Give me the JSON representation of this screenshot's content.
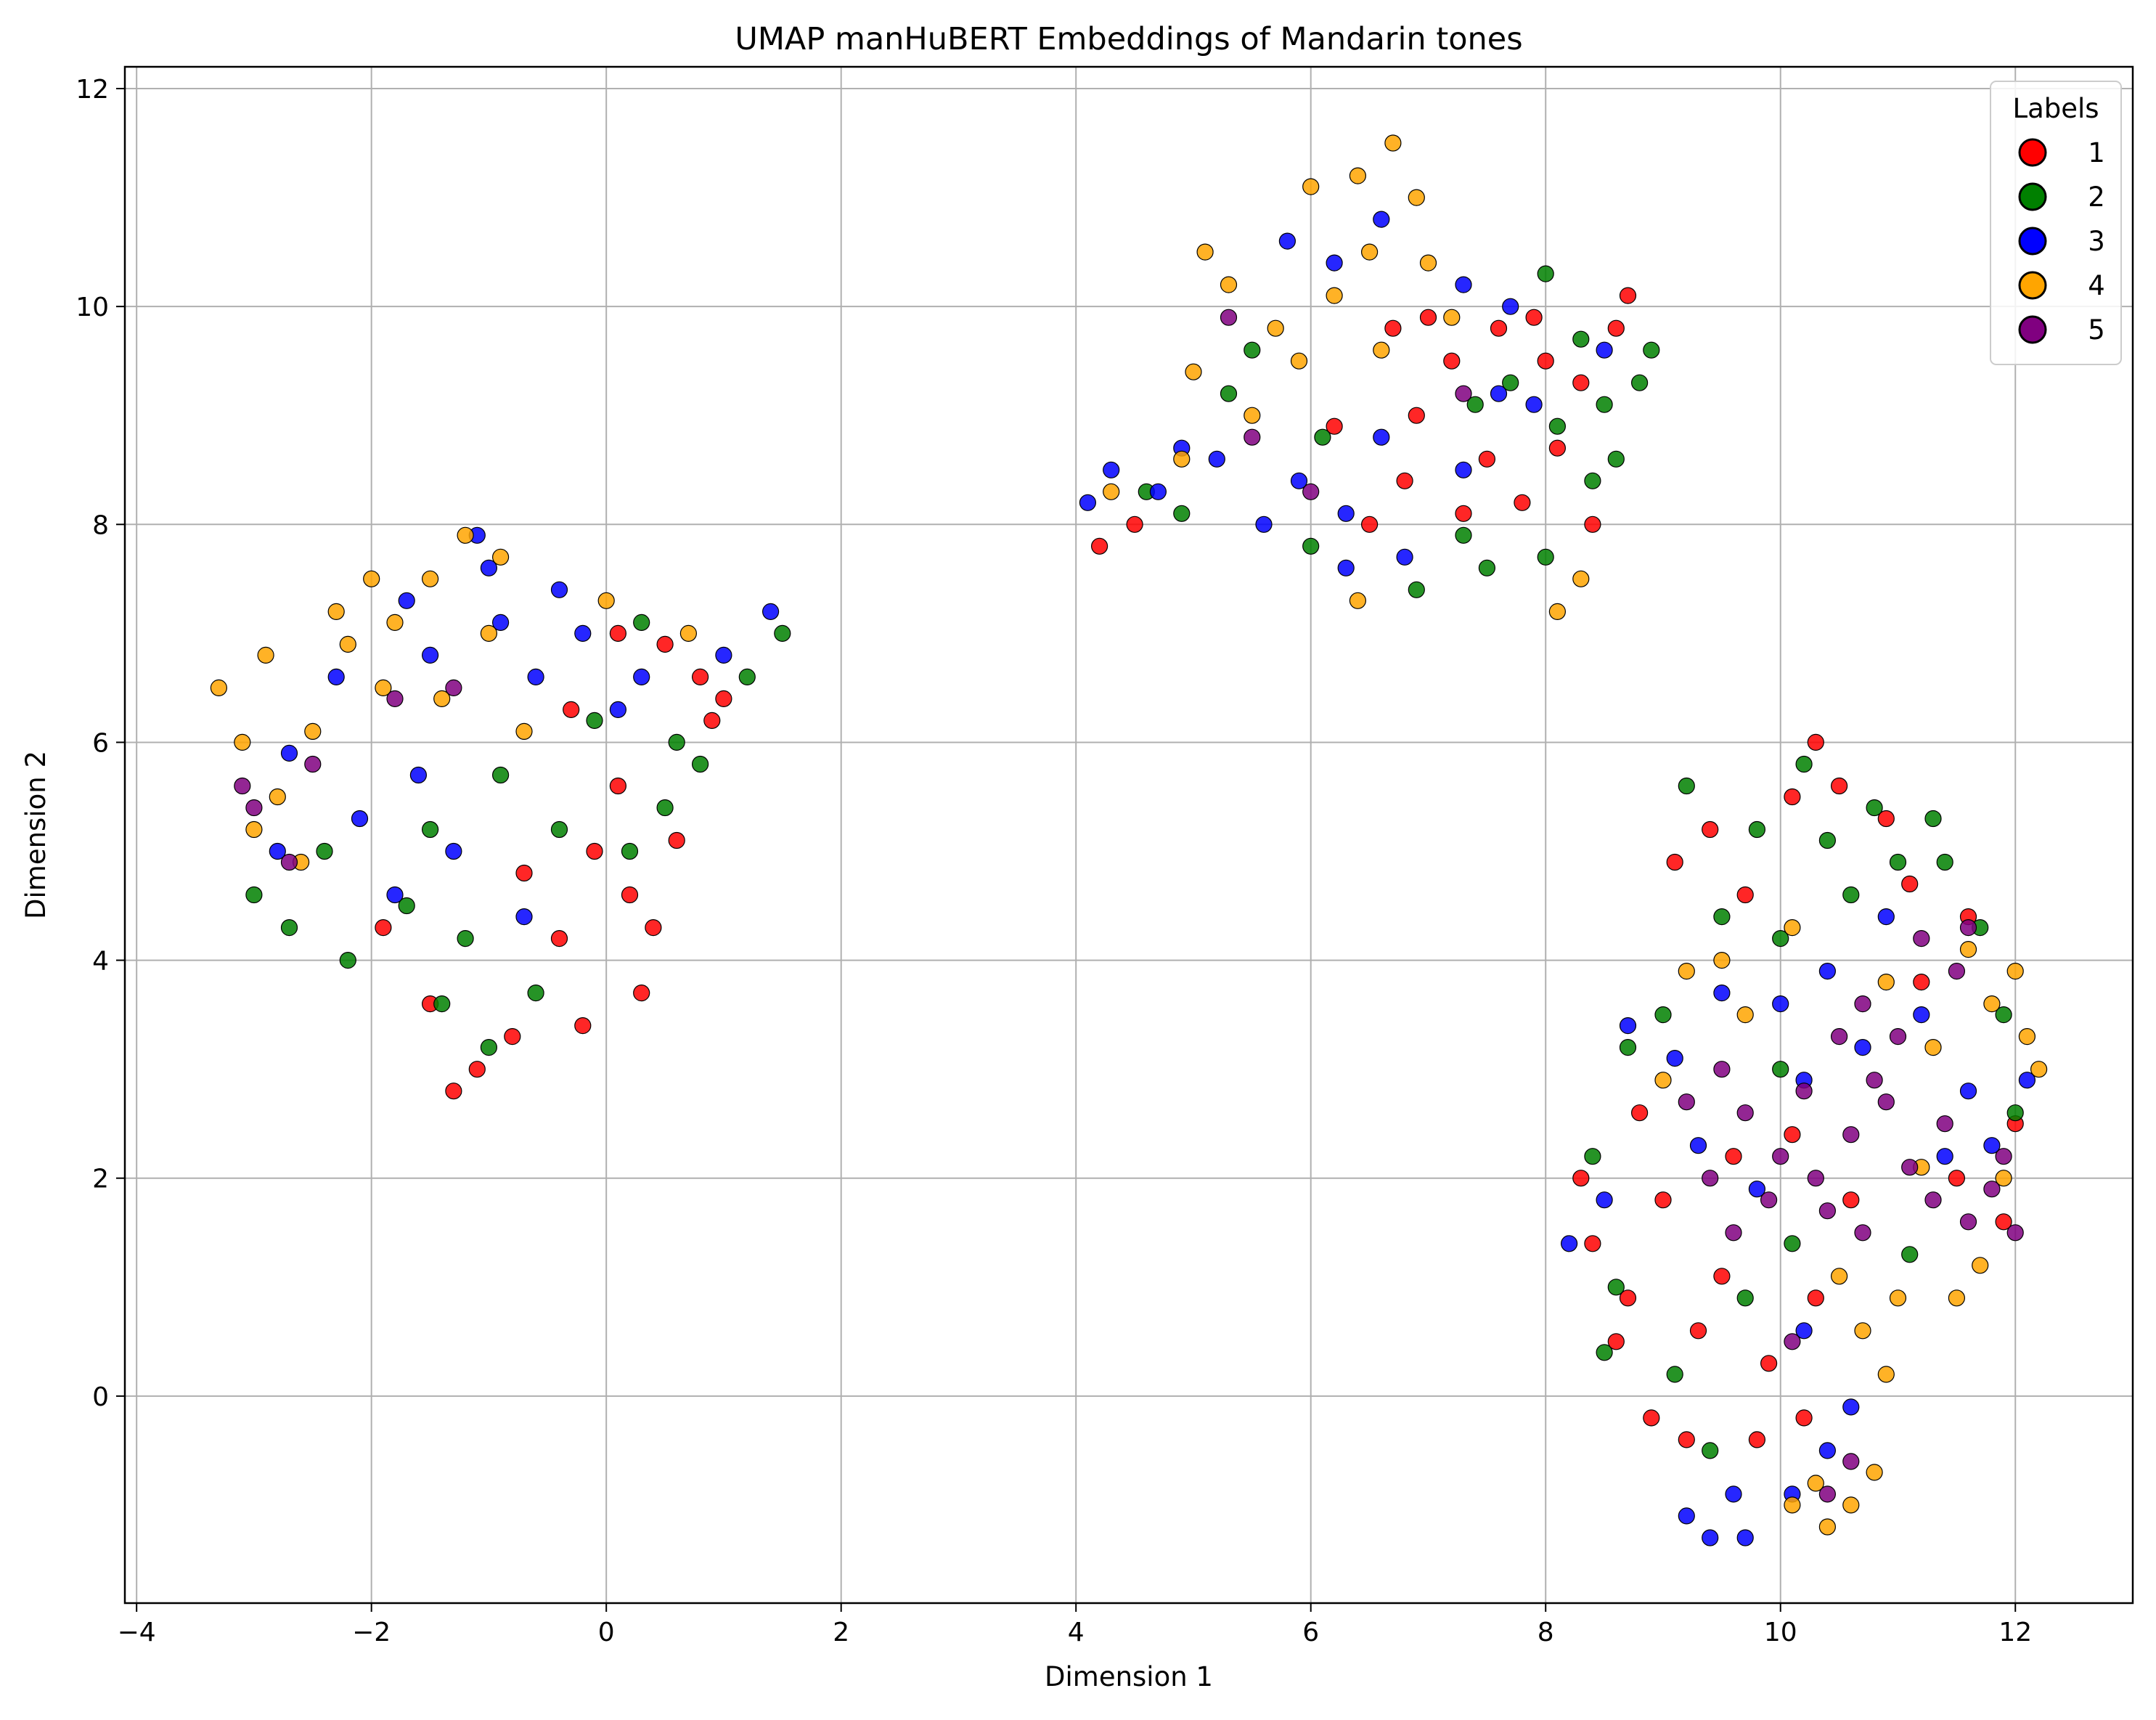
{
  "chart_data": {
    "type": "scatter",
    "title": "UMAP manHuBERT Embeddings of Mandarin tones",
    "xlabel": "Dimension 1",
    "ylabel": "Dimension 2",
    "xlim": [
      -4.1,
      13.0
    ],
    "ylim": [
      -1.9,
      12.2
    ],
    "xticks": [
      -4,
      -2,
      0,
      2,
      4,
      6,
      8,
      10,
      12
    ],
    "xtick_labels": [
      "−4",
      "−2",
      "0",
      "2",
      "4",
      "6",
      "8",
      "10",
      "12"
    ],
    "yticks": [
      0,
      2,
      4,
      6,
      8,
      10,
      12
    ],
    "ytick_labels": [
      "0",
      "2",
      "4",
      "6",
      "8",
      "10",
      "12"
    ],
    "grid": true,
    "legend": {
      "title": "Labels",
      "placement": "top-right",
      "entries": [
        "1",
        "2",
        "3",
        "4",
        "5"
      ]
    },
    "series": [
      {
        "name": "1",
        "color": "#ff0000",
        "points": [
          [
            0.1,
            5.6
          ],
          [
            0.6,
            5.1
          ],
          [
            0.9,
            6.2
          ],
          [
            0.2,
            4.6
          ],
          [
            -0.4,
            4.2
          ],
          [
            0.3,
            3.7
          ],
          [
            -0.2,
            3.4
          ],
          [
            -1.1,
            3.0
          ],
          [
            -1.3,
            2.8
          ],
          [
            -0.8,
            3.3
          ],
          [
            -1.5,
            3.6
          ],
          [
            -1.9,
            4.3
          ],
          [
            0.8,
            6.6
          ],
          [
            0.5,
            6.9
          ],
          [
            1.0,
            6.4
          ],
          [
            -0.1,
            5.0
          ],
          [
            0.4,
            4.3
          ],
          [
            -0.7,
            4.8
          ],
          [
            -0.3,
            6.3
          ],
          [
            0.1,
            7.0
          ],
          [
            7.6,
            9.8
          ],
          [
            8.1,
            8.7
          ],
          [
            7.9,
            9.9
          ],
          [
            8.4,
            8.0
          ],
          [
            7.5,
            8.6
          ],
          [
            8.7,
            10.1
          ],
          [
            8.3,
            9.3
          ],
          [
            7.8,
            8.2
          ],
          [
            6.8,
            8.4
          ],
          [
            6.9,
            9.0
          ],
          [
            6.2,
            8.9
          ],
          [
            6.5,
            8.0
          ],
          [
            7.2,
            9.5
          ],
          [
            4.5,
            8.0
          ],
          [
            4.2,
            7.8
          ],
          [
            8.0,
            9.5
          ],
          [
            8.6,
            9.8
          ],
          [
            7.3,
            8.1
          ],
          [
            6.7,
            9.8
          ],
          [
            7.0,
            9.9
          ],
          [
            8.6,
            0.5
          ],
          [
            8.9,
            -0.2
          ],
          [
            9.2,
            -0.4
          ],
          [
            9.5,
            1.1
          ],
          [
            8.4,
            1.4
          ],
          [
            8.7,
            0.9
          ],
          [
            9.9,
            0.3
          ],
          [
            9.3,
            0.6
          ],
          [
            8.8,
            2.6
          ],
          [
            9.6,
            2.2
          ],
          [
            10.1,
            5.5
          ],
          [
            10.5,
            5.6
          ],
          [
            10.9,
            5.3
          ],
          [
            9.4,
            5.2
          ],
          [
            9.1,
            4.9
          ],
          [
            9.7,
            4.6
          ],
          [
            10.3,
            6.0
          ],
          [
            11.1,
            4.7
          ],
          [
            11.6,
            4.4
          ],
          [
            11.2,
            3.8
          ],
          [
            10.6,
            1.8
          ],
          [
            10.1,
            2.4
          ],
          [
            11.9,
            1.6
          ],
          [
            11.5,
            2.0
          ],
          [
            12.0,
            2.5
          ],
          [
            10.3,
            0.9
          ],
          [
            9.0,
            1.8
          ],
          [
            8.3,
            2.0
          ],
          [
            9.8,
            -0.4
          ],
          [
            10.2,
            -0.2
          ]
        ]
      },
      {
        "name": "2",
        "color": "#008000",
        "points": [
          [
            -0.6,
            3.7
          ],
          [
            -1.0,
            3.2
          ],
          [
            -1.7,
            4.5
          ],
          [
            -1.2,
            4.2
          ],
          [
            -0.4,
            5.2
          ],
          [
            0.2,
            5.0
          ],
          [
            0.6,
            6.0
          ],
          [
            1.2,
            6.6
          ],
          [
            1.5,
            7.0
          ],
          [
            0.8,
            5.8
          ],
          [
            -2.2,
            4.0
          ],
          [
            -2.7,
            4.3
          ],
          [
            -3.0,
            4.6
          ],
          [
            -1.5,
            5.2
          ],
          [
            -0.9,
            5.7
          ],
          [
            0.3,
            7.1
          ],
          [
            -0.1,
            6.2
          ],
          [
            -1.4,
            3.6
          ],
          [
            0.5,
            5.4
          ],
          [
            -2.4,
            5.0
          ],
          [
            8.1,
            8.9
          ],
          [
            8.9,
            9.6
          ],
          [
            8.5,
            9.1
          ],
          [
            8.4,
            8.4
          ],
          [
            8.0,
            7.7
          ],
          [
            7.5,
            7.6
          ],
          [
            8.6,
            8.6
          ],
          [
            7.7,
            9.3
          ],
          [
            8.3,
            9.7
          ],
          [
            6.1,
            8.8
          ],
          [
            6.0,
            7.8
          ],
          [
            5.3,
            9.2
          ],
          [
            6.9,
            7.4
          ],
          [
            7.3,
            7.9
          ],
          [
            4.6,
            8.3
          ],
          [
            4.9,
            8.1
          ],
          [
            5.5,
            9.6
          ],
          [
            8.0,
            10.3
          ],
          [
            8.8,
            9.3
          ],
          [
            7.4,
            9.1
          ],
          [
            10.2,
            5.8
          ],
          [
            10.8,
            5.4
          ],
          [
            11.0,
            4.9
          ],
          [
            10.4,
            5.1
          ],
          [
            9.8,
            5.2
          ],
          [
            9.2,
            5.6
          ],
          [
            9.5,
            4.4
          ],
          [
            10.0,
            4.2
          ],
          [
            11.4,
            4.9
          ],
          [
            11.7,
            4.3
          ],
          [
            11.9,
            3.5
          ],
          [
            8.4,
            2.2
          ],
          [
            8.6,
            1.0
          ],
          [
            8.5,
            0.4
          ],
          [
            9.1,
            0.2
          ],
          [
            9.7,
            0.9
          ],
          [
            10.1,
            1.4
          ],
          [
            9.4,
            -0.5
          ],
          [
            11.3,
            5.3
          ],
          [
            10.6,
            4.6
          ],
          [
            10.0,
            3.0
          ],
          [
            9.0,
            3.5
          ],
          [
            8.7,
            3.2
          ],
          [
            11.1,
            1.3
          ],
          [
            12.0,
            2.6
          ]
        ]
      },
      {
        "name": "3",
        "color": "#0000ff",
        "points": [
          [
            -1.0,
            7.6
          ],
          [
            -0.4,
            7.4
          ],
          [
            -1.5,
            6.8
          ],
          [
            -0.9,
            7.1
          ],
          [
            -2.3,
            6.6
          ],
          [
            -2.7,
            5.9
          ],
          [
            -2.8,
            5.0
          ],
          [
            -1.6,
            5.7
          ],
          [
            -0.6,
            6.6
          ],
          [
            0.1,
            6.3
          ],
          [
            1.0,
            6.8
          ],
          [
            1.4,
            7.2
          ],
          [
            -0.2,
            7.0
          ],
          [
            -1.3,
            5.0
          ],
          [
            -1.8,
            4.6
          ],
          [
            -2.1,
            5.3
          ],
          [
            0.3,
            6.6
          ],
          [
            -0.7,
            4.4
          ],
          [
            -1.1,
            7.9
          ],
          [
            -1.7,
            7.3
          ],
          [
            4.3,
            8.5
          ],
          [
            4.7,
            8.3
          ],
          [
            4.9,
            8.7
          ],
          [
            4.1,
            8.2
          ],
          [
            5.2,
            8.6
          ],
          [
            5.6,
            8.0
          ],
          [
            5.9,
            8.4
          ],
          [
            6.3,
            8.1
          ],
          [
            6.6,
            8.8
          ],
          [
            6.3,
            7.6
          ],
          [
            6.8,
            7.7
          ],
          [
            7.3,
            8.5
          ],
          [
            7.6,
            9.2
          ],
          [
            7.9,
            9.1
          ],
          [
            5.8,
            10.6
          ],
          [
            6.2,
            10.4
          ],
          [
            6.6,
            10.8
          ],
          [
            7.3,
            10.2
          ],
          [
            7.7,
            10.0
          ],
          [
            8.5,
            9.6
          ],
          [
            9.4,
            -1.3
          ],
          [
            9.7,
            -1.3
          ],
          [
            9.2,
            -1.1
          ],
          [
            10.1,
            -0.9
          ],
          [
            10.4,
            -0.5
          ],
          [
            10.6,
            -0.1
          ],
          [
            9.6,
            -0.9
          ],
          [
            10.7,
            3.2
          ],
          [
            10.2,
            2.9
          ],
          [
            9.5,
            3.7
          ],
          [
            10.0,
            3.6
          ],
          [
            11.6,
            2.8
          ],
          [
            11.8,
            2.3
          ],
          [
            11.4,
            2.2
          ],
          [
            8.2,
            1.4
          ],
          [
            8.5,
            1.8
          ],
          [
            10.2,
            0.6
          ],
          [
            9.3,
            2.3
          ],
          [
            10.9,
            4.4
          ],
          [
            10.4,
            3.9
          ],
          [
            9.8,
            1.9
          ],
          [
            9.1,
            3.1
          ],
          [
            8.7,
            3.4
          ],
          [
            11.2,
            3.5
          ],
          [
            12.1,
            2.9
          ]
        ]
      },
      {
        "name": "4",
        "color": "#ffa500",
        "points": [
          [
            -3.3,
            6.5
          ],
          [
            -3.1,
            6.0
          ],
          [
            -2.9,
            6.8
          ],
          [
            -2.5,
            6.1
          ],
          [
            -2.0,
            7.5
          ],
          [
            -1.8,
            7.1
          ],
          [
            -1.2,
            7.9
          ],
          [
            -1.5,
            7.5
          ],
          [
            -0.9,
            7.7
          ],
          [
            -2.3,
            7.2
          ],
          [
            -2.8,
            5.5
          ],
          [
            -3.0,
            5.2
          ],
          [
            -2.6,
            4.9
          ],
          [
            -1.9,
            6.5
          ],
          [
            -1.4,
            6.4
          ],
          [
            -0.7,
            6.1
          ],
          [
            0.0,
            7.3
          ],
          [
            0.7,
            7.0
          ],
          [
            -2.2,
            6.9
          ],
          [
            -1.0,
            7.0
          ],
          [
            5.1,
            10.5
          ],
          [
            5.3,
            10.2
          ],
          [
            5.7,
            9.8
          ],
          [
            5.0,
            9.4
          ],
          [
            5.5,
            9.0
          ],
          [
            5.9,
            9.5
          ],
          [
            6.2,
            10.1
          ],
          [
            6.5,
            10.5
          ],
          [
            6.9,
            11.0
          ],
          [
            6.7,
            11.5
          ],
          [
            6.4,
            11.2
          ],
          [
            6.0,
            11.1
          ],
          [
            7.0,
            10.4
          ],
          [
            7.2,
            9.9
          ],
          [
            6.6,
            9.6
          ],
          [
            4.9,
            8.6
          ],
          [
            4.3,
            8.3
          ],
          [
            8.1,
            7.2
          ],
          [
            8.3,
            7.5
          ],
          [
            6.4,
            7.3
          ],
          [
            12.1,
            3.3
          ],
          [
            12.2,
            3.0
          ],
          [
            11.8,
            3.6
          ],
          [
            12.0,
            3.9
          ],
          [
            11.6,
            4.1
          ],
          [
            11.3,
            3.2
          ],
          [
            10.4,
            -1.2
          ],
          [
            10.1,
            -1.0
          ],
          [
            10.6,
            -1.0
          ],
          [
            10.8,
            -0.7
          ],
          [
            10.3,
            -0.8
          ],
          [
            10.9,
            0.2
          ],
          [
            10.7,
            0.6
          ],
          [
            11.0,
            0.9
          ],
          [
            11.7,
            1.2
          ],
          [
            11.5,
            0.9
          ],
          [
            9.5,
            4.0
          ],
          [
            9.7,
            3.5
          ],
          [
            9.2,
            3.9
          ],
          [
            11.2,
            2.1
          ],
          [
            10.1,
            4.3
          ],
          [
            10.9,
            3.8
          ],
          [
            11.9,
            2.0
          ],
          [
            10.5,
            1.1
          ],
          [
            9.0,
            2.9
          ]
        ]
      },
      {
        "name": "5",
        "color": "#800080",
        "points": [
          [
            -3.1,
            5.6
          ],
          [
            -2.7,
            4.9
          ],
          [
            -3.0,
            5.4
          ],
          [
            -1.8,
            6.4
          ],
          [
            -2.5,
            5.8
          ],
          [
            -1.3,
            6.5
          ],
          [
            6.0,
            8.3
          ],
          [
            5.5,
            8.8
          ],
          [
            5.3,
            9.9
          ],
          [
            7.3,
            9.2
          ],
          [
            9.7,
            2.6
          ],
          [
            10.2,
            2.8
          ],
          [
            10.6,
            2.4
          ],
          [
            10.9,
            2.7
          ],
          [
            11.1,
            2.1
          ],
          [
            11.4,
            2.5
          ],
          [
            10.8,
            2.9
          ],
          [
            10.5,
            3.3
          ],
          [
            10.0,
            2.2
          ],
          [
            9.4,
            2.0
          ],
          [
            9.6,
            1.5
          ],
          [
            10.4,
            1.7
          ],
          [
            11.3,
            1.8
          ],
          [
            11.6,
            1.6
          ],
          [
            11.8,
            1.9
          ],
          [
            12.0,
            1.5
          ],
          [
            11.0,
            3.3
          ],
          [
            11.5,
            3.9
          ],
          [
            11.2,
            4.2
          ],
          [
            10.7,
            3.6
          ],
          [
            9.9,
            1.8
          ],
          [
            10.3,
            2.0
          ],
          [
            10.7,
            1.5
          ],
          [
            9.2,
            2.7
          ],
          [
            9.5,
            3.0
          ],
          [
            11.9,
            2.2
          ],
          [
            10.1,
            0.5
          ],
          [
            10.6,
            -0.6
          ],
          [
            10.4,
            -0.9
          ],
          [
            11.6,
            4.3
          ]
        ]
      }
    ]
  }
}
